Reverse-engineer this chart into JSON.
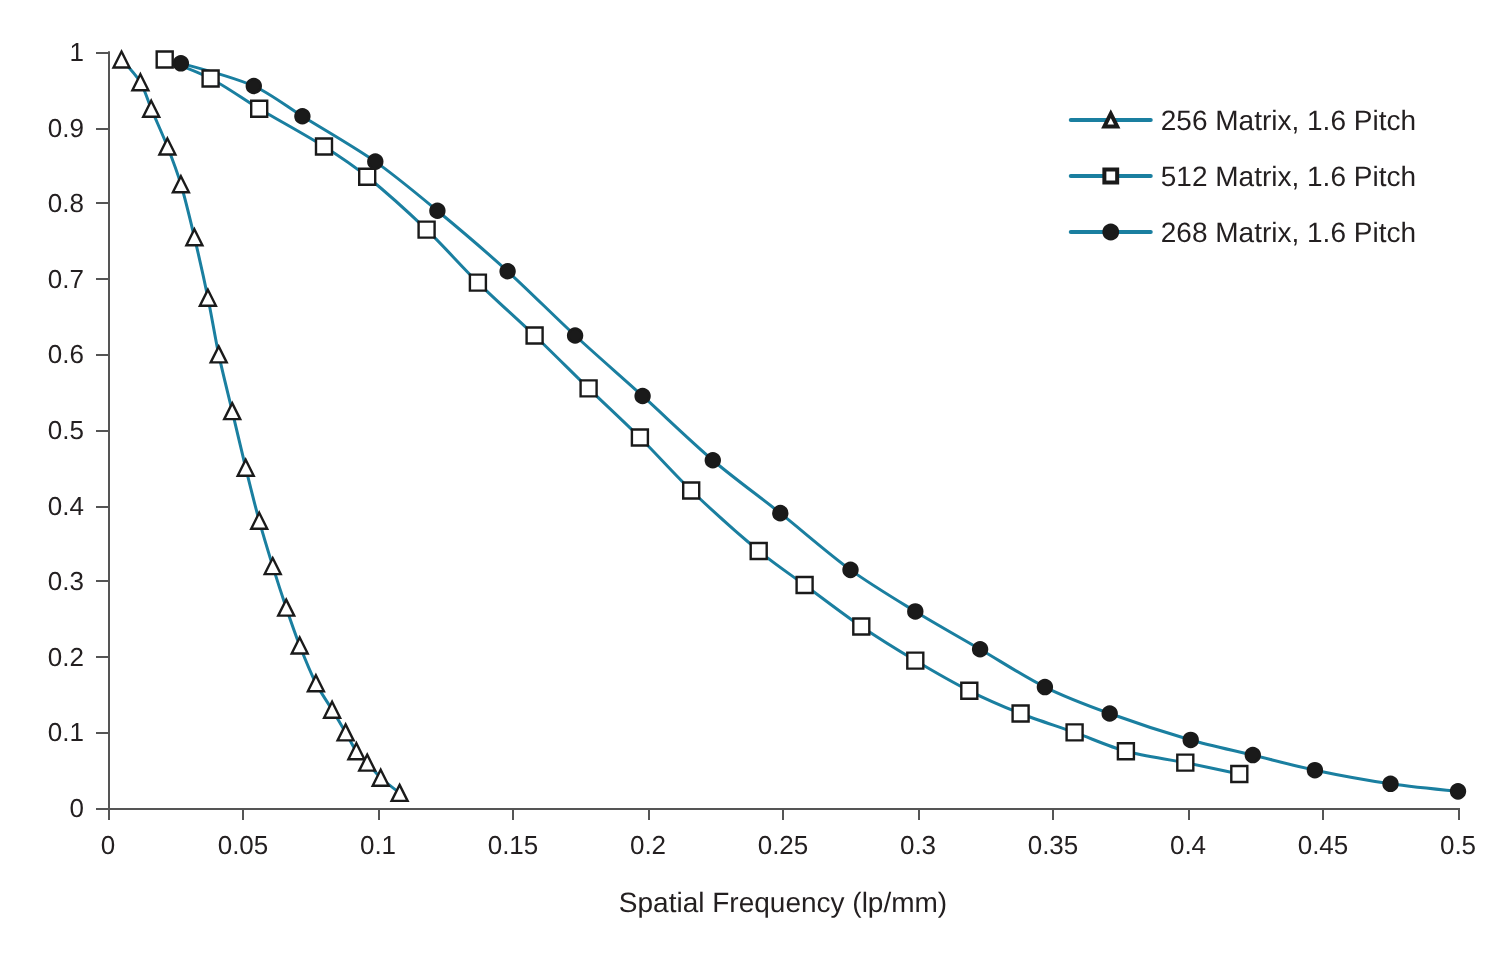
{
  "chart_data": {
    "type": "line",
    "xlabel": "Spatial Frequency (lp/mm)",
    "xlim": [
      0,
      0.5
    ],
    "xticks": [
      0,
      0.05,
      0.1,
      0.15,
      0.2,
      0.25,
      0.3,
      0.35,
      0.4,
      0.45,
      0.5
    ],
    "ylim": [
      0,
      1
    ],
    "yticks": [
      0,
      0.1,
      0.2,
      0.3,
      0.4,
      0.5,
      0.6,
      0.7,
      0.8,
      0.9,
      1
    ],
    "grid": false,
    "legend": "top right",
    "line_style": "solid",
    "series": [
      {
        "name": "256 Matrix, 1.6 Pitch",
        "color": "#1a7fa0",
        "marker": "triangle",
        "x": [
          0.005,
          0.012,
          0.016,
          0.022,
          0.027,
          0.032,
          0.037,
          0.041,
          0.046,
          0.051,
          0.056,
          0.061,
          0.066,
          0.071,
          0.077,
          0.083,
          0.088,
          0.092,
          0.096,
          0.101,
          0.108
        ],
        "values": [
          0.99,
          0.96,
          0.925,
          0.875,
          0.825,
          0.755,
          0.675,
          0.6,
          0.525,
          0.45,
          0.38,
          0.32,
          0.265,
          0.215,
          0.165,
          0.13,
          0.1,
          0.075,
          0.06,
          0.04,
          0.02
        ]
      },
      {
        "name": "512 Matrix, 1.6 Pitch",
        "color": "#1a7fa0",
        "marker": "square",
        "x": [
          0.021,
          0.038,
          0.056,
          0.08,
          0.096,
          0.118,
          0.137,
          0.158,
          0.178,
          0.197,
          0.216,
          0.241,
          0.258,
          0.279,
          0.299,
          0.319,
          0.338,
          0.358,
          0.377,
          0.399,
          0.419
        ],
        "values": [
          0.99,
          0.965,
          0.925,
          0.875,
          0.835,
          0.765,
          0.695,
          0.625,
          0.555,
          0.49,
          0.42,
          0.34,
          0.295,
          0.24,
          0.195,
          0.155,
          0.125,
          0.1,
          0.075,
          0.06,
          0.045
        ]
      },
      {
        "name": "268 Matrix, 1.6 Pitch",
        "color": "#1a7fa0",
        "marker": "circle",
        "x": [
          0.027,
          0.054,
          0.072,
          0.099,
          0.122,
          0.148,
          0.173,
          0.198,
          0.224,
          0.249,
          0.275,
          0.299,
          0.323,
          0.347,
          0.371,
          0.401,
          0.424,
          0.447,
          0.475,
          0.5
        ],
        "values": [
          0.985,
          0.955,
          0.915,
          0.855,
          0.79,
          0.71,
          0.625,
          0.545,
          0.46,
          0.39,
          0.315,
          0.26,
          0.21,
          0.16,
          0.125,
          0.09,
          0.07,
          0.05,
          0.032,
          0.022
        ]
      }
    ]
  }
}
